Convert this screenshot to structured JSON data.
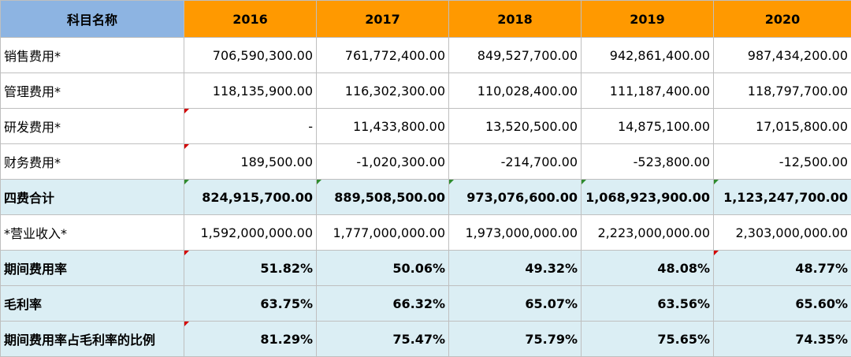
{
  "header": {
    "first": "科目名称",
    "years": [
      "2016",
      "2017",
      "2018",
      "2019",
      "2020"
    ]
  },
  "rows": [
    {
      "label": "销售费用*",
      "values": [
        "706,590,300.00",
        "761,772,400.00",
        "849,527,700.00",
        "942,861,400.00",
        "987,434,200.00"
      ]
    },
    {
      "label": "管理费用*",
      "values": [
        "118,135,900.00",
        "116,302,300.00",
        "110,028,400.00",
        "111,187,400.00",
        "118,797,700.00"
      ]
    },
    {
      "label": "研发费用*",
      "values": [
        "-",
        "11,433,800.00",
        "13,520,500.00",
        "14,875,100.00",
        "17,015,800.00"
      ]
    },
    {
      "label": "财务费用*",
      "values": [
        "189,500.00",
        "-1,020,300.00",
        "-214,700.00",
        "-523,800.00",
        "-12,500.00"
      ]
    },
    {
      "label": "四费合计",
      "values": [
        "824,915,700.00",
        "889,508,500.00",
        "973,076,600.00",
        "1,068,923,900.00",
        "1,123,247,700.00"
      ]
    },
    {
      "label": "*营业收入*",
      "values": [
        "1,592,000,000.00",
        "1,777,000,000.00",
        "1,973,000,000.00",
        "2,223,000,000.00",
        "2,303,000,000.00"
      ]
    },
    {
      "label": "期间费用率",
      "values": [
        "51.82%",
        "50.06%",
        "49.32%",
        "48.08%",
        "48.77%"
      ]
    },
    {
      "label": "毛利率",
      "values": [
        "63.75%",
        "66.32%",
        "65.07%",
        "63.56%",
        "65.60%"
      ]
    },
    {
      "label": "期间费用率占毛利率的比例",
      "values": [
        "81.29%",
        "75.47%",
        "75.79%",
        "75.65%",
        "74.35%"
      ]
    }
  ],
  "colors": {
    "header_first": "#8db4e2",
    "header_year": "#ff9900",
    "shade": "#dbeef4",
    "comment_marker": "#d40000"
  }
}
